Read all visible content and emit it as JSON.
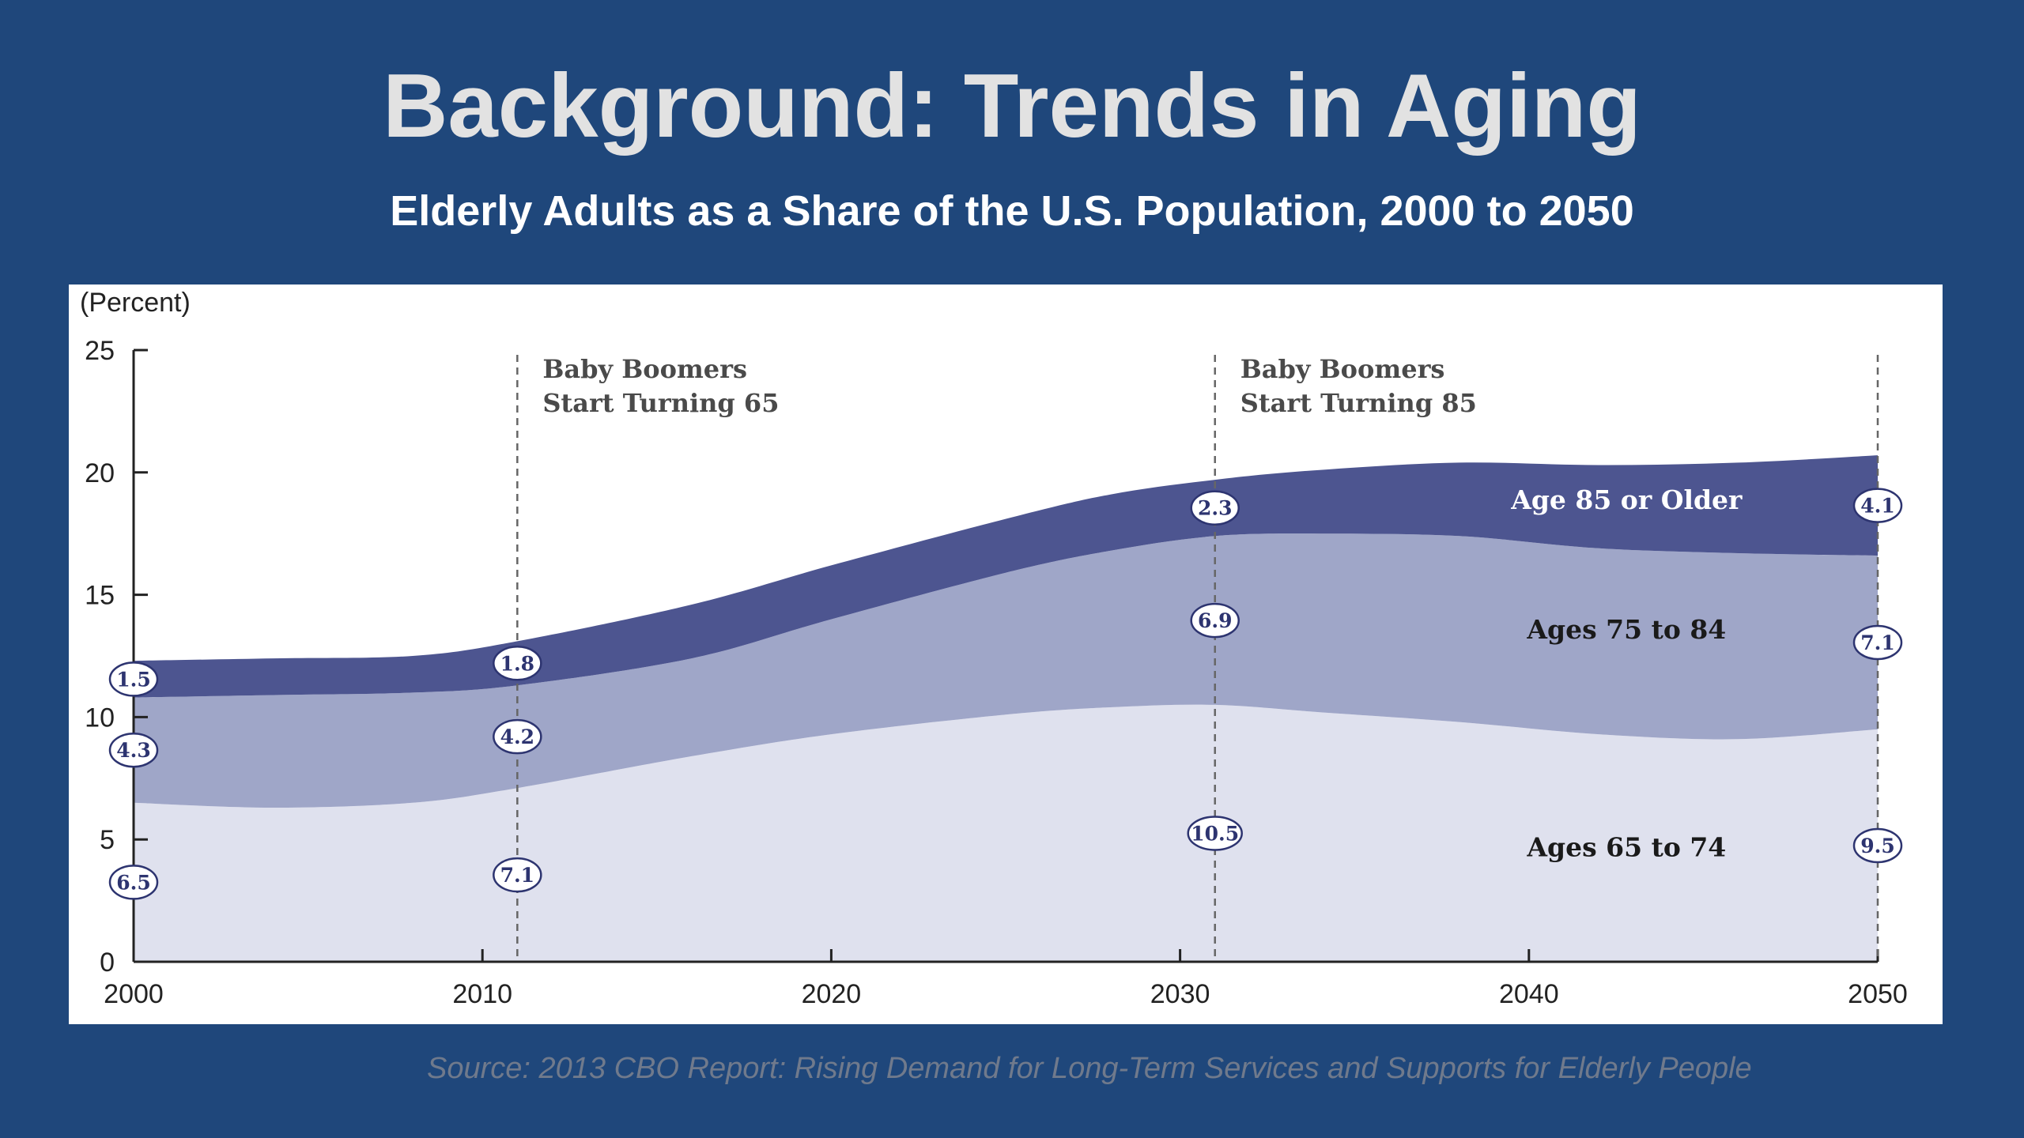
{
  "slide": {
    "title": "Background: Trends in Aging",
    "subtitle": "Elderly Adults as a Share of the U.S. Population, 2000 to 2050",
    "source": "Source: 2013 CBO Report: Rising Demand for Long-Term Services and Supports for Elderly People"
  },
  "colors": {
    "background": "#1f477b",
    "ages_65_74": "#dfe1ee",
    "ages_75_84": "#9fa6c8",
    "age_85_plus": "#4d5590",
    "axis": "#222222",
    "marker_text": "#2d3470"
  },
  "chart_data": {
    "type": "area",
    "stacked": true,
    "title": "",
    "ylabel": "(Percent)",
    "xlabel": "",
    "xlim": [
      2000,
      2050
    ],
    "ylim": [
      0,
      25
    ],
    "x_ticks": [
      "2000",
      "2010",
      "2020",
      "2030",
      "2040",
      "2050"
    ],
    "y_ticks": [
      "0",
      "5",
      "10",
      "15",
      "20",
      "25"
    ],
    "grid": false,
    "x": [
      2000,
      2004,
      2008,
      2011,
      2016,
      2020,
      2025,
      2028,
      2031,
      2034,
      2038,
      2042,
      2046,
      2050
    ],
    "series": [
      {
        "name": "Ages 65 to 74",
        "color": "#dfe1ee",
        "values": [
          6.5,
          6.3,
          6.5,
          7.1,
          8.4,
          9.3,
          10.1,
          10.4,
          10.5,
          10.2,
          9.8,
          9.3,
          9.1,
          9.5
        ]
      },
      {
        "name": "Ages 75 to 84",
        "color": "#9fa6c8",
        "values": [
          4.3,
          4.6,
          4.5,
          4.2,
          4.0,
          4.7,
          5.8,
          6.4,
          6.9,
          7.3,
          7.6,
          7.6,
          7.6,
          7.1
        ]
      },
      {
        "name": "Age 85 or Older",
        "color": "#4d5590",
        "values": [
          1.5,
          1.5,
          1.5,
          1.8,
          2.2,
          2.2,
          2.2,
          2.3,
          2.3,
          2.6,
          3.0,
          3.4,
          3.7,
          4.1
        ]
      }
    ],
    "callouts": [
      {
        "year": 2000,
        "series": "Ages 65 to 74",
        "label": "6.5"
      },
      {
        "year": 2000,
        "series": "Ages 75 to 84",
        "label": "4.3"
      },
      {
        "year": 2000,
        "series": "Age 85 or Older",
        "label": "1.5"
      },
      {
        "year": 2011,
        "series": "Ages 65 to 74",
        "label": "7.1"
      },
      {
        "year": 2011,
        "series": "Ages 75 to 84",
        "label": "4.2"
      },
      {
        "year": 2011,
        "series": "Age 85 or Older",
        "label": "1.8"
      },
      {
        "year": 2031,
        "series": "Ages 65 to 74",
        "label": "10.5"
      },
      {
        "year": 2031,
        "series": "Ages 75 to 84",
        "label": "6.9"
      },
      {
        "year": 2031,
        "series": "Age 85 or Older",
        "label": "2.3"
      },
      {
        "year": 2050,
        "series": "Ages 65 to 74",
        "label": "9.5"
      },
      {
        "year": 2050,
        "series": "Ages 75 to 84",
        "label": "7.1"
      },
      {
        "year": 2050,
        "series": "Age 85 or Older",
        "label": "4.1"
      }
    ],
    "reference_lines": [
      {
        "year": 2011,
        "label_line1": "Baby Boomers",
        "label_line2": "Start Turning 65"
      },
      {
        "year": 2031,
        "label_line1": "Baby Boomers",
        "label_line2": "Start Turning 85"
      },
      {
        "year": 2050,
        "label_line1": "",
        "label_line2": ""
      }
    ],
    "series_labels": [
      {
        "series": "Age 85 or Older",
        "text": "Age 85 or Older"
      },
      {
        "series": "Ages 75 to 84",
        "text": "Ages 75 to 84"
      },
      {
        "series": "Ages 65 to 74",
        "text": "Ages 65 to 74"
      }
    ]
  }
}
